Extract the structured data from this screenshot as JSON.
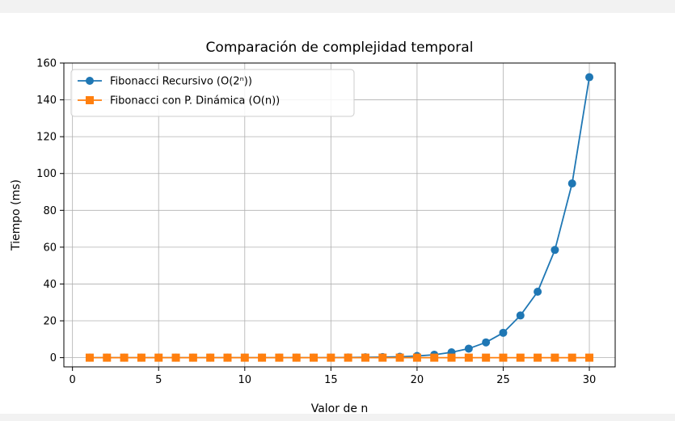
{
  "chart_data": {
    "type": "line",
    "title": "Comparación de complejidad temporal",
    "xlabel": "Valor de n",
    "ylabel": "Tiempo (ms)",
    "xlim": [
      -0.5,
      31.5
    ],
    "ylim": [
      -5,
      160
    ],
    "xticks": [
      0,
      5,
      10,
      15,
      20,
      25,
      30
    ],
    "yticks": [
      0,
      20,
      40,
      60,
      80,
      100,
      120,
      140,
      160
    ],
    "grid": true,
    "legend_position": "top-left",
    "x": [
      1,
      2,
      3,
      4,
      5,
      6,
      7,
      8,
      9,
      10,
      11,
      12,
      13,
      14,
      15,
      16,
      17,
      18,
      19,
      20,
      21,
      22,
      23,
      24,
      25,
      26,
      27,
      28,
      29,
      30
    ],
    "series": [
      {
        "name": "Fibonacci Recursivo (O(2ⁿ))",
        "color": "#1f77b4",
        "marker": "circle",
        "values": [
          0,
          0,
          0,
          0,
          0,
          0,
          0,
          0,
          0,
          0,
          0,
          0,
          0,
          0,
          0.01,
          0.1,
          0.2,
          0.3,
          0.5,
          0.9,
          1.6,
          2.9,
          4.9,
          8.3,
          13.5,
          22.9,
          35.8,
          58.5,
          94.6,
          152.3
        ]
      },
      {
        "name": "Fibonacci con P. Dinámica (O(n))",
        "color": "#ff7f0e",
        "marker": "square",
        "values": [
          0,
          0,
          0,
          0,
          0,
          0,
          0,
          0,
          0,
          0,
          0,
          0,
          0,
          0,
          0,
          0,
          0,
          0,
          0,
          0,
          0,
          0,
          0,
          0,
          0,
          0,
          0,
          0,
          0,
          0
        ]
      }
    ]
  }
}
